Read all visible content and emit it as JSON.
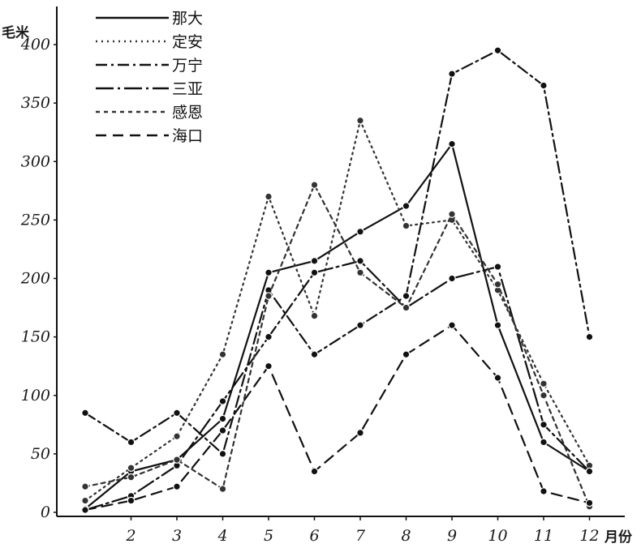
{
  "chart_data": {
    "type": "line",
    "title": "",
    "xlabel": "月份",
    "ylabel": "毛米",
    "x": [
      1,
      2,
      3,
      4,
      5,
      6,
      7,
      8,
      9,
      10,
      11,
      12
    ],
    "xticks": [
      "2",
      "3",
      "4",
      "5",
      "6",
      "7",
      "8",
      "9",
      "10",
      "11",
      "12"
    ],
    "yticks": [
      "0",
      "50",
      "100",
      "150",
      "200",
      "250",
      "300",
      "350",
      "400"
    ],
    "ylim": [
      0,
      400
    ],
    "xlim": [
      0.5,
      12.8
    ],
    "grid": false,
    "legend_position": "top-left",
    "series": [
      {
        "name": "那大",
        "style": "solid",
        "color": "#111111",
        "values": [
          3,
          35,
          45,
          80,
          205,
          215,
          240,
          262,
          315,
          160,
          60,
          35
        ]
      },
      {
        "name": "定安",
        "style": "dotted",
        "color": "#333333",
        "values": [
          10,
          38,
          65,
          135,
          270,
          168,
          335,
          245,
          250,
          190,
          110,
          40
        ]
      },
      {
        "name": "万宁",
        "style": "dashdot",
        "color": "#111111",
        "values": [
          85,
          60,
          85,
          50,
          190,
          135,
          160,
          185,
          375,
          395,
          365,
          150
        ]
      },
      {
        "name": "三亚",
        "style": "longdashdot",
        "color": "#111111",
        "values": [
          2,
          14,
          40,
          95,
          150,
          205,
          215,
          175,
          200,
          210,
          75,
          35
        ]
      },
      {
        "name": "感恩",
        "style": "shortdash",
        "color": "#333333",
        "values": [
          22,
          30,
          45,
          20,
          185,
          280,
          205,
          175,
          255,
          195,
          100,
          5
        ]
      },
      {
        "name": "海口",
        "style": "dashed",
        "color": "#111111",
        "values": [
          2,
          10,
          22,
          70,
          125,
          35,
          68,
          135,
          160,
          115,
          18,
          8
        ]
      }
    ]
  }
}
